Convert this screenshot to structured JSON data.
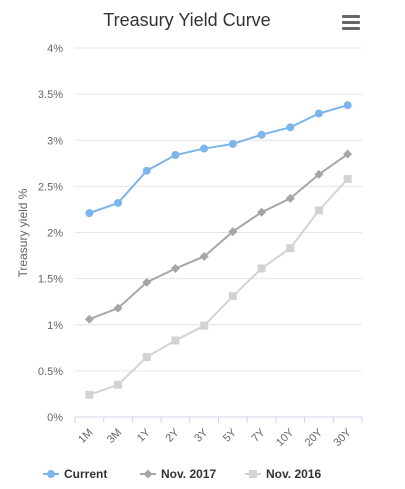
{
  "icons": {
    "menu": "hamburger-menu-icon"
  },
  "chart_data": {
    "type": "line",
    "title": "Treasury Yield Curve",
    "xlabel": "",
    "ylabel": "Treasury yield %",
    "categories": [
      "1M",
      "3M",
      "1Y",
      "2Y",
      "3Y",
      "5Y",
      "7Y",
      "10Y",
      "20Y",
      "30Y"
    ],
    "ylim": [
      0,
      4
    ],
    "yticks": [
      "0%",
      "0.5%",
      "1%",
      "1.5%",
      "2%",
      "2.5%",
      "3%",
      "3.5%",
      "4%"
    ],
    "grid": true,
    "legend_position": "bottom",
    "series": [
      {
        "name": "Current",
        "color": "#7cb5ec",
        "marker": "circle",
        "values": [
          2.21,
          2.32,
          2.67,
          2.84,
          2.91,
          2.96,
          3.06,
          3.14,
          3.29,
          3.38
        ]
      },
      {
        "name": "Nov. 2017",
        "color": "#a6a6a6",
        "marker": "diamond",
        "values": [
          1.06,
          1.18,
          1.46,
          1.61,
          1.74,
          2.01,
          2.22,
          2.37,
          2.63,
          2.85
        ]
      },
      {
        "name": "Nov. 2016",
        "color": "#d3d3d3",
        "marker": "square",
        "values": [
          0.24,
          0.35,
          0.65,
          0.83,
          0.99,
          1.31,
          1.61,
          1.83,
          2.24,
          2.58
        ]
      }
    ]
  }
}
